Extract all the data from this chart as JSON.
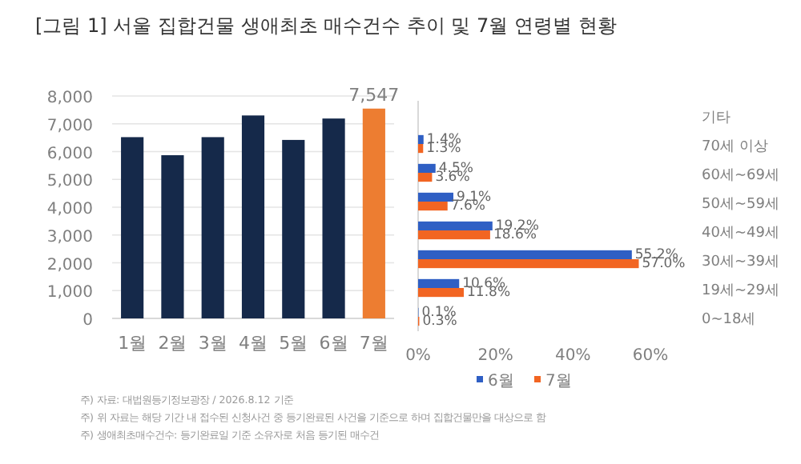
{
  "chart_data": [
    {
      "type": "bar",
      "title": "[그림 1] 서울 집합건물 생애최초 매수건수 추이 및 7월 연령별 현황",
      "categories": [
        "1월",
        "2월",
        "3월",
        "4월",
        "5월",
        "6월",
        "7월"
      ],
      "values": [
        6520,
        5870,
        6520,
        7300,
        6420,
        7190,
        7547
      ],
      "colors": [
        "#15294a",
        "#15294a",
        "#15294a",
        "#15294a",
        "#15294a",
        "#15294a",
        "#ed7d31"
      ],
      "value_labels": [
        null,
        null,
        null,
        null,
        null,
        null,
        "7,547"
      ],
      "ylim": [
        0,
        8000
      ],
      "yticks": [
        {
          "value": 0,
          "label": "0"
        },
        {
          "value": 1000,
          "label": "1,000"
        },
        {
          "value": 2000,
          "label": "2,000"
        },
        {
          "value": 3000,
          "label": "3,000"
        },
        {
          "value": 4000,
          "label": "4,000"
        },
        {
          "value": 5000,
          "label": "5,000"
        },
        {
          "value": 6000,
          "label": "6,000"
        },
        {
          "value": 7000,
          "label": "7,000"
        },
        {
          "value": 8000,
          "label": "8,000"
        }
      ],
      "grid": "y",
      "legend": false,
      "annotations": [
        "주) 자료: 대법원등기정보광장 / 2026.8.12 기준",
        "주) 위 자료는 해당 기간 내 접수된 신청사건 중 등기완료된 사건을 기준으로 하며 집합건물만을 대상으로 함",
        "주) 생애최초매수건수: 등기완료일 기준 소유자로 처음 등기된 매수건"
      ]
    },
    {
      "type": "bar",
      "orientation": "horizontal",
      "categories": [
        "기타",
        "70세 이상",
        "60세~69세",
        "50세~59세",
        "40세~49세",
        "30세~39세",
        "19세~29세",
        "0~18세"
      ],
      "series": [
        {
          "name": "6월",
          "color": "#2f5fc4",
          "values": [
            null,
            1.4,
            4.5,
            9.1,
            19.2,
            55.2,
            10.6,
            0.1
          ],
          "value_labels": [
            null,
            "1.4%",
            "4.5%",
            "9.1%",
            "19.2%",
            "55.2%",
            "10.6%",
            "0.1%"
          ]
        },
        {
          "name": "7월",
          "color": "#f26522",
          "values": [
            null,
            1.3,
            3.6,
            7.6,
            18.6,
            57.0,
            11.8,
            0.3
          ],
          "value_labels": [
            null,
            "1.3%",
            "3.6%",
            "7.6%",
            "18.6%",
            "57.0%",
            "11.8%",
            "0.3%"
          ]
        }
      ],
      "xlim": [
        0,
        60
      ],
      "xticks": [
        {
          "value": 0,
          "label": "0%"
        },
        {
          "value": 20,
          "label": "20%"
        },
        {
          "value": 40,
          "label": "40%"
        },
        {
          "value": 60,
          "label": "60%"
        }
      ],
      "grid": false,
      "legend": "bottom"
    }
  ]
}
